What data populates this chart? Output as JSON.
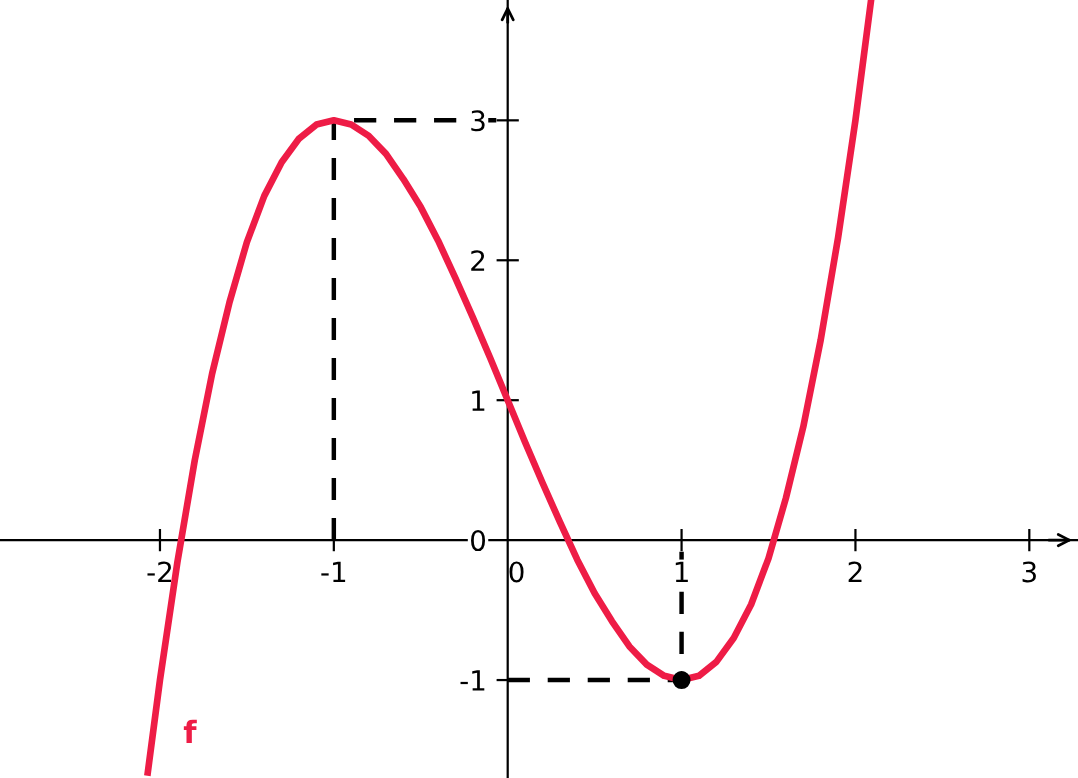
{
  "chart_data": {
    "type": "line",
    "xlim": [
      -2.92,
      3.28
    ],
    "ylim": [
      -1.7,
      3.86
    ],
    "xticks": [
      -2,
      -1,
      0,
      1,
      2,
      3
    ],
    "yticks": [
      -1,
      0,
      1,
      2,
      3
    ],
    "grid": false,
    "legend": false,
    "series": [
      {
        "color": "#ee1c46",
        "x": [
          -2.07,
          -2.0,
          -1.9,
          -1.8,
          -1.7,
          -1.6,
          -1.5,
          -1.4,
          -1.3,
          -1.2,
          -1.1,
          -1.0,
          -0.9,
          -0.8,
          -0.7,
          -0.6,
          -0.5,
          -0.4,
          -0.3,
          -0.2,
          -0.1,
          0.0,
          0.1,
          0.2,
          0.3,
          0.4,
          0.5,
          0.6,
          0.7,
          0.8,
          0.9,
          1.0,
          1.1,
          1.2,
          1.3,
          1.4,
          1.5,
          1.6,
          1.7,
          1.8,
          1.9,
          2.0,
          2.09
        ],
        "values": [
          -1.66,
          -1.0,
          -0.16,
          0.57,
          1.19,
          1.7,
          2.13,
          2.46,
          2.7,
          2.87,
          2.97,
          3.0,
          2.97,
          2.89,
          2.76,
          2.58,
          2.38,
          2.14,
          1.87,
          1.59,
          1.3,
          1.0,
          0.7,
          0.41,
          0.13,
          -0.14,
          -0.38,
          -0.58,
          -0.76,
          -0.89,
          -0.97,
          -1.0,
          -0.97,
          -0.87,
          -0.7,
          -0.46,
          -0.13,
          0.3,
          0.81,
          1.43,
          2.16,
          3.0,
          3.86
        ],
        "line_style": "solid",
        "marker": "none"
      },
      {
        "color": "#000000",
        "x": [
          -1,
          -1,
          0
        ],
        "values": [
          0,
          3,
          3
        ],
        "line_style": "dashed",
        "marker": "none"
      },
      {
        "color": "#000000",
        "x": [
          0,
          1,
          1
        ],
        "values": [
          -1,
          -1,
          0
        ],
        "line_style": "dashed",
        "marker": "none"
      },
      {
        "type": "scatter",
        "color": "#000000",
        "x": [
          1
        ],
        "values": [
          -1
        ],
        "marker": "circle"
      }
    ],
    "annotations": [
      "f"
    ]
  }
}
